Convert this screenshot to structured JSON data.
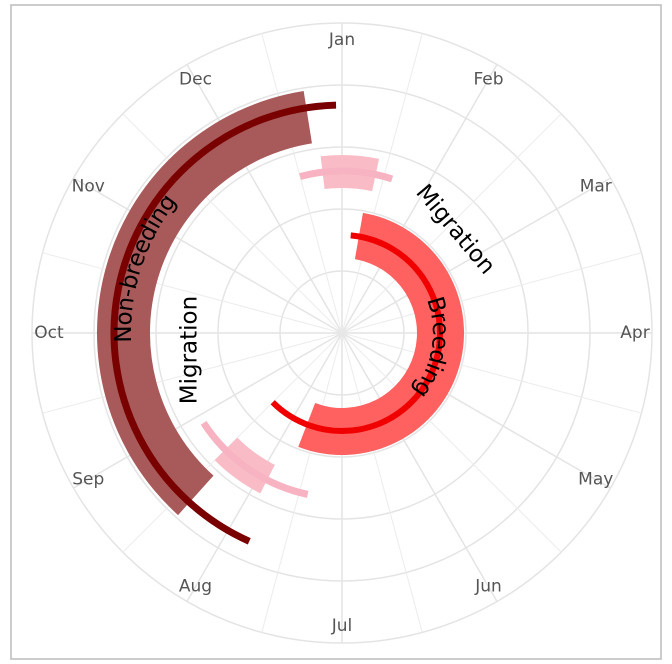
{
  "chart_data": {
    "type": "radial-phase",
    "xlim": [
      0,
      12
    ],
    "xticks": [
      {
        "value": 0,
        "label": "Jan"
      },
      {
        "value": 1,
        "label": "Feb"
      },
      {
        "value": 2,
        "label": "Mar"
      },
      {
        "value": 3,
        "label": "Apr"
      },
      {
        "value": 4,
        "label": "May"
      },
      {
        "value": 5,
        "label": "Jun"
      },
      {
        "value": 6,
        "label": "Jul"
      },
      {
        "value": 7,
        "label": "Aug"
      },
      {
        "value": 8,
        "label": "Sep"
      },
      {
        "value": 9,
        "label": "Oct"
      },
      {
        "value": 10,
        "label": "Nov"
      },
      {
        "value": 11,
        "label": "Dec"
      }
    ],
    "grid": true,
    "series": [
      {
        "name": "Non-breeding",
        "color": "#a85a5a",
        "range_color": "#7a0000",
        "band": [
          7.4,
          11.7
        ],
        "range": [
          6.8,
          11.95
        ]
      },
      {
        "name": "Migration",
        "color": "#f9bcc6",
        "range_color": "#f7b3c1",
        "band": [
          -0.23,
          0.4
        ],
        "range": [
          -0.5,
          0.6
        ]
      },
      {
        "name": "Breeding",
        "color": "#ff6060",
        "range_color": "#f00000",
        "band": [
          0.33,
          6.7
        ],
        "range": [
          0.17,
          7.5
        ]
      },
      {
        "name": "Migration",
        "color": "#f9bcc6",
        "range_color": "#f7b3c1",
        "band": [
          6.9,
          7.5
        ],
        "range": [
          6.4,
          7.9
        ]
      }
    ]
  }
}
